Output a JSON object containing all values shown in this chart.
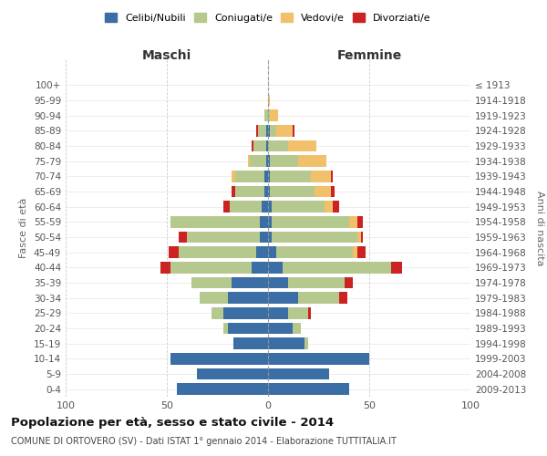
{
  "age_groups": [
    "0-4",
    "5-9",
    "10-14",
    "15-19",
    "20-24",
    "25-29",
    "30-34",
    "35-39",
    "40-44",
    "45-49",
    "50-54",
    "55-59",
    "60-64",
    "65-69",
    "70-74",
    "75-79",
    "80-84",
    "85-89",
    "90-94",
    "95-99",
    "100+"
  ],
  "birth_years": [
    "2009-2013",
    "2004-2008",
    "1999-2003",
    "1994-1998",
    "1989-1993",
    "1984-1988",
    "1979-1983",
    "1974-1978",
    "1969-1973",
    "1964-1968",
    "1959-1963",
    "1954-1958",
    "1949-1953",
    "1944-1948",
    "1939-1943",
    "1934-1938",
    "1929-1933",
    "1924-1928",
    "1919-1923",
    "1914-1918",
    "≤ 1913"
  ],
  "maschi": {
    "celibi": [
      45,
      35,
      48,
      17,
      20,
      22,
      20,
      18,
      8,
      6,
      4,
      4,
      3,
      2,
      2,
      1,
      1,
      1,
      0,
      0,
      0
    ],
    "coniugati": [
      0,
      0,
      0,
      0,
      2,
      6,
      14,
      20,
      40,
      38,
      36,
      44,
      16,
      14,
      14,
      8,
      6,
      4,
      2,
      0,
      0
    ],
    "vedovi": [
      0,
      0,
      0,
      0,
      0,
      0,
      0,
      0,
      0,
      0,
      0,
      0,
      0,
      0,
      2,
      1,
      0,
      0,
      0,
      0,
      0
    ],
    "divorziati": [
      0,
      0,
      0,
      0,
      0,
      0,
      0,
      0,
      5,
      5,
      4,
      0,
      3,
      2,
      0,
      0,
      1,
      1,
      0,
      0,
      0
    ]
  },
  "femmine": {
    "nubili": [
      40,
      30,
      50,
      18,
      12,
      10,
      15,
      10,
      7,
      4,
      2,
      2,
      2,
      1,
      1,
      1,
      0,
      1,
      0,
      0,
      0
    ],
    "coniugate": [
      0,
      0,
      0,
      2,
      4,
      10,
      20,
      28,
      54,
      38,
      42,
      38,
      26,
      22,
      20,
      14,
      10,
      3,
      1,
      0,
      0
    ],
    "vedove": [
      0,
      0,
      0,
      0,
      0,
      0,
      0,
      0,
      0,
      2,
      2,
      4,
      4,
      8,
      10,
      14,
      14,
      8,
      4,
      1,
      0
    ],
    "divorziate": [
      0,
      0,
      0,
      0,
      0,
      1,
      4,
      4,
      5,
      4,
      1,
      3,
      3,
      2,
      1,
      0,
      0,
      1,
      0,
      0,
      0
    ]
  },
  "colors": {
    "celibi_nubili": "#3a6ea5",
    "coniugati": "#b5c98e",
    "vedovi": "#f0c06a",
    "divorziati": "#cc2222"
  },
  "legend_labels": [
    "Celibi/Nubili",
    "Coniugati/e",
    "Vedovi/e",
    "Divorziati/e"
  ],
  "xlim": 100,
  "title": "Popolazione per età, sesso e stato civile - 2014",
  "subtitle": "COMUNE DI ORTOVERO (SV) - Dati ISTAT 1° gennaio 2014 - Elaborazione TUTTITALIA.IT",
  "ylabel_left": "Fasce di età",
  "ylabel_right": "Anni di nascita",
  "xlabel_left": "Maschi",
  "xlabel_right": "Femmine"
}
